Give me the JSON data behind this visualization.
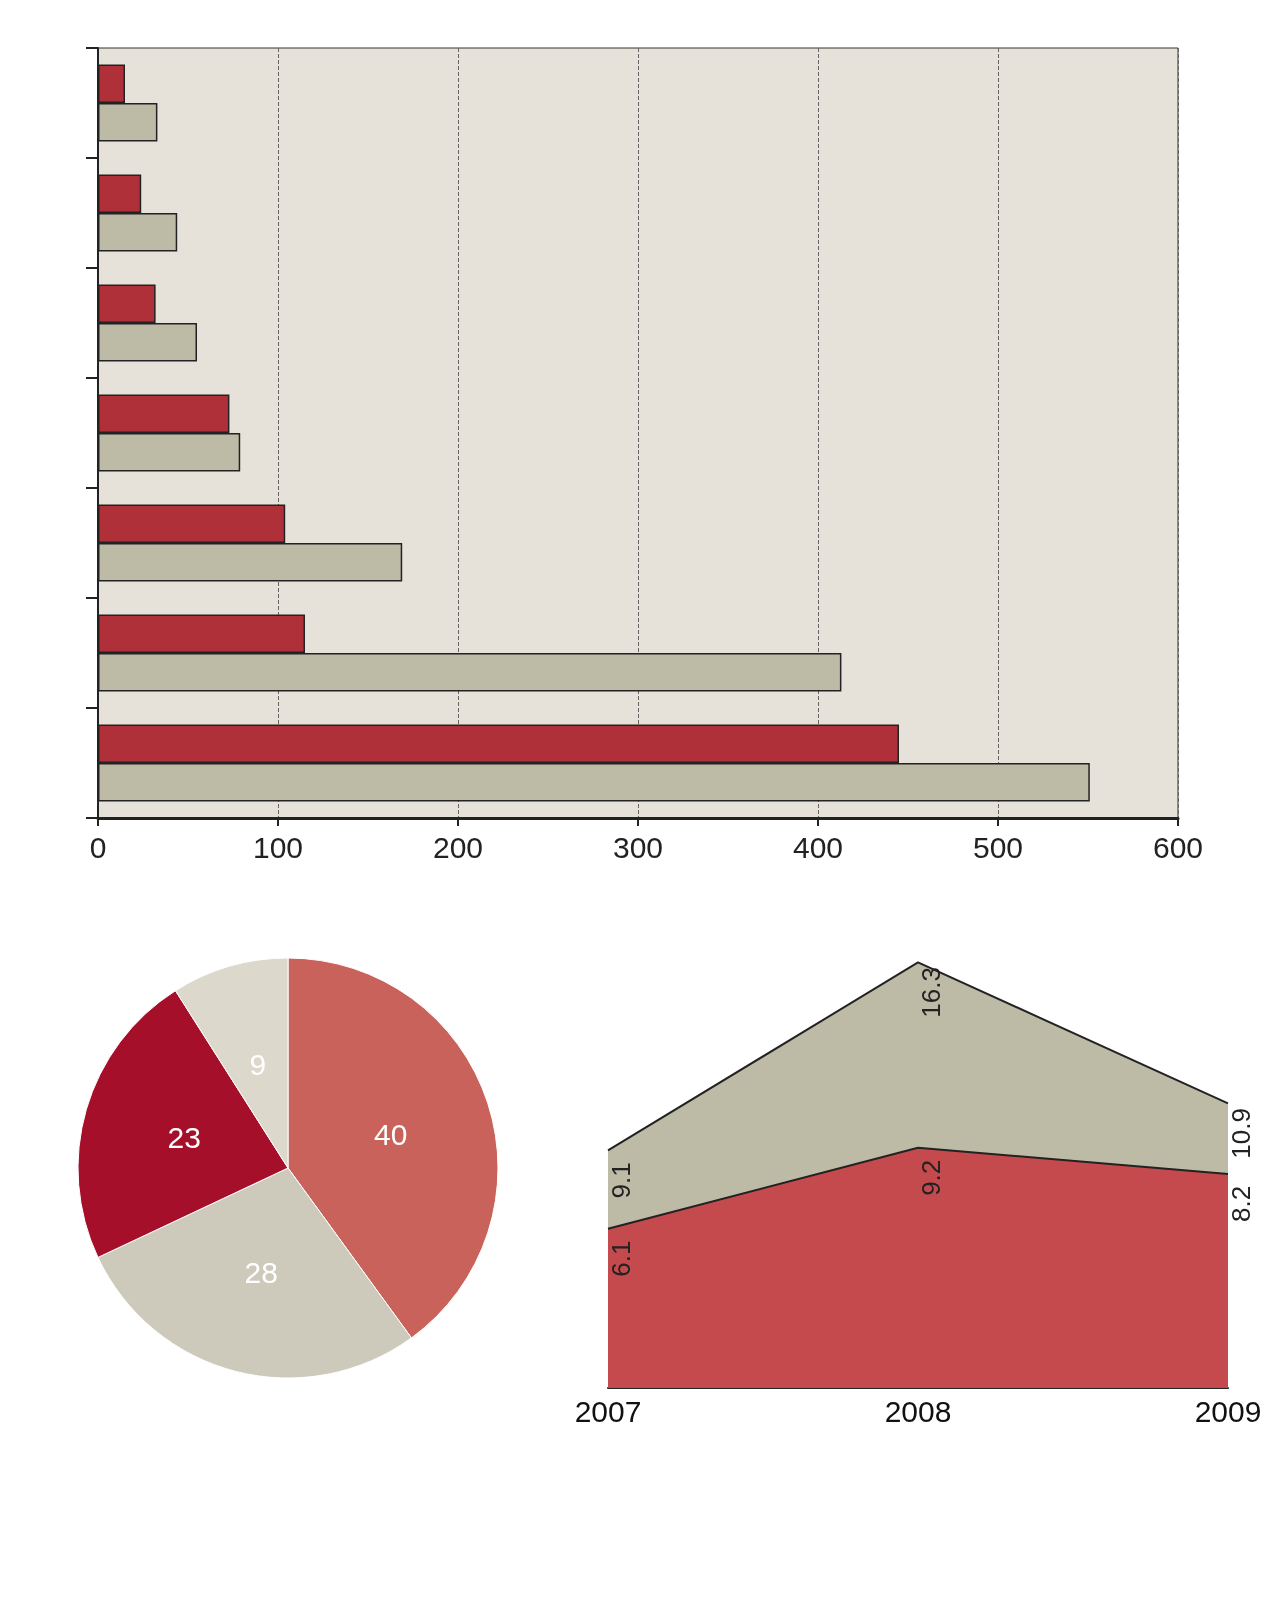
{
  "chart_data": [
    {
      "type": "bar",
      "orientation": "horizontal",
      "categories": [
        null,
        null,
        null,
        null,
        null,
        null,
        null
      ],
      "series": [
        {
          "color": "#b0303a",
          "values": [
            15,
            24,
            32,
            73,
            104,
            115,
            445
          ]
        },
        {
          "color": "#bdbba6",
          "values": [
            33,
            44,
            55,
            79,
            169,
            413,
            551
          ]
        }
      ],
      "xlim": [
        0,
        600
      ],
      "xticks": [
        0,
        100,
        200,
        300,
        400,
        500,
        600
      ],
      "grid": "x",
      "line_style": "dashed",
      "tick_labels": "x"
    },
    {
      "type": "pie",
      "categories": [
        null,
        null,
        null,
        null
      ],
      "values": [
        40,
        28,
        23,
        9
      ],
      "colors": [
        "#c8625a",
        "#cdc9bb",
        "#a50f2a",
        "#ddd8cc"
      ],
      "data_labels": true
    },
    {
      "type": "area",
      "categories": [
        "2007",
        "2008",
        "2009"
      ],
      "series": [
        {
          "color": "#bdbba6",
          "values": [
            9.1,
            16.3,
            10.9
          ]
        },
        {
          "color": "#c44a4e",
          "values": [
            6.1,
            9.2,
            8.2
          ]
        }
      ],
      "data_labels": true,
      "tick_labels": "x"
    }
  ]
}
